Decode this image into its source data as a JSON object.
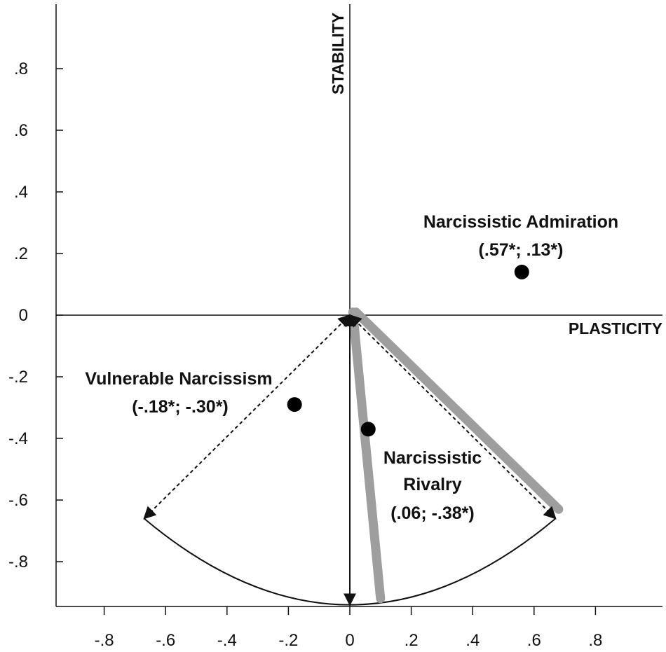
{
  "chart_data": {
    "type": "scatter",
    "title": "",
    "xlabel": "PLASTICITY",
    "ylabel": "STABILITY",
    "xlim": [
      -0.96,
      1.02
    ],
    "ylim": [
      -0.95,
      1.0
    ],
    "grid": false,
    "x_ticks": [
      -0.8,
      -0.6,
      -0.4,
      -0.2,
      0,
      0.2,
      0.4,
      0.6,
      0.8
    ],
    "x_tick_labels": [
      "-.8",
      "-.6",
      "-.4",
      "-.2",
      "0",
      ".2",
      ".4",
      ".6",
      ".8"
    ],
    "y_ticks": [
      0.8,
      0.6,
      0.4,
      0.2,
      0,
      -0.2,
      -0.4,
      -0.6,
      -0.8
    ],
    "y_tick_labels": [
      ".8",
      ".6",
      ".4",
      ".2",
      "0",
      "-.2",
      "-.4",
      "-.6",
      "-.8"
    ],
    "points": [
      {
        "name": "Narcissistic Admiration",
        "x": 0.56,
        "y": 0.14,
        "label_lines": [
          "Narcissistic Admiration",
          "(.57*; .13*)"
        ]
      },
      {
        "name": "Vulnerable Narcissism",
        "x": -0.18,
        "y": -0.29,
        "label_lines": [
          "Vulnerable Narcissism",
          "(-.18*; -.30*)"
        ]
      },
      {
        "name": "Narcissistic Rivalry",
        "x": 0.06,
        "y": -0.37,
        "label_lines": [
          "Narcissistic",
          "Rivalry",
          "(.06; -.38*)"
        ]
      }
    ],
    "vectors": [
      {
        "name": "dashed-vector-left",
        "from": [
          0,
          0
        ],
        "to": [
          -0.67,
          -0.66
        ],
        "style": "dashed"
      },
      {
        "name": "solid-vector-down",
        "from": [
          0,
          0
        ],
        "to": [
          0,
          -0.94
        ],
        "style": "solid"
      },
      {
        "name": "dashed-vector-right",
        "from": [
          0,
          0
        ],
        "to": [
          0.67,
          -0.66
        ],
        "style": "dashed"
      }
    ],
    "arc": {
      "from": [
        -0.67,
        -0.66
      ],
      "to": [
        0.67,
        -0.66
      ],
      "bottom": -0.94
    },
    "gray_lines": [
      {
        "name": "gray-line-steep",
        "from": [
          0.01,
          0.01
        ],
        "to": [
          0.1,
          -0.92
        ]
      },
      {
        "name": "gray-line-diagonal",
        "from": [
          0.02,
          0.01
        ],
        "to": [
          0.68,
          -0.63
        ]
      }
    ]
  }
}
